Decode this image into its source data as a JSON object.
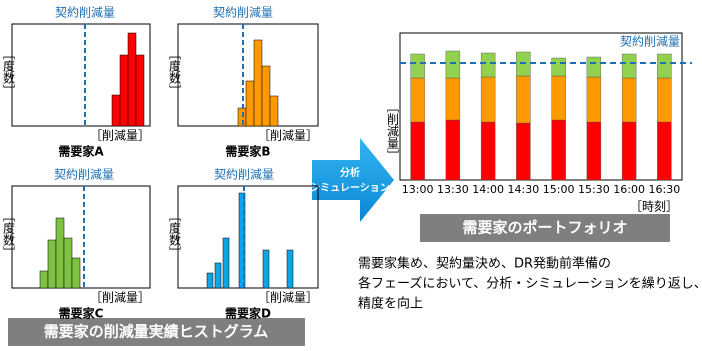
{
  "contract_label": "契約削減量",
  "y_label": "［度数］",
  "x_label": "［削減量］",
  "histograms": [
    {
      "customer": "需要家A",
      "color": "#ff0000",
      "values": [
        0,
        0,
        0,
        0,
        0,
        0,
        0,
        0,
        0,
        0,
        0,
        0,
        31,
        71,
        93,
        71,
        0
      ]
    },
    {
      "customer": "需要家B",
      "color": "#ff9900",
      "values": [
        0,
        0,
        0,
        0,
        0,
        0,
        0,
        18,
        45,
        86,
        60,
        30,
        0,
        0,
        0,
        0,
        0
      ]
    },
    {
      "customer": "需要家C",
      "color": "#7dc242",
      "values": [
        0,
        0,
        0,
        17,
        48,
        70,
        50,
        30,
        0,
        0,
        0,
        0,
        0,
        0,
        0,
        0,
        0
      ]
    },
    {
      "customer": "需要家D",
      "color": "#0ea5e6",
      "values": [
        0,
        0,
        0,
        15,
        25,
        50,
        0,
        95,
        0,
        0,
        38,
        0,
        0,
        38,
        0,
        0,
        0
      ]
    }
  ],
  "histogram_caption": "需要家の削減量実績ヒストグラム",
  "arrow_label": [
    "分析",
    "シミュレーション"
  ],
  "portfolio": {
    "title": "需要家のポートフォリオ",
    "contract_label": "契約削減量",
    "y_label": "［削減量］",
    "x_label": "［時刻］",
    "categories": [
      "13:00",
      "13:30",
      "14:00",
      "14:30",
      "15:00",
      "15:30",
      "16:00",
      "16:30"
    ],
    "series": [
      {
        "color": "#ff0000",
        "values": [
          58,
          60,
          58,
          57,
          60,
          58,
          58,
          58
        ]
      },
      {
        "color": "#ff9900",
        "values": [
          44,
          42,
          45,
          47,
          44,
          45,
          44,
          44
        ]
      },
      {
        "color": "#92d050",
        "values": [
          24,
          27,
          24,
          24,
          18,
          20,
          24,
          24
        ]
      }
    ],
    "contract_value": 117
  },
  "note": [
    "需要家集め、契約量決め、DR発動前準備の",
    "各フェーズにおいて、分析・シミュレーションを繰り返し、",
    "精度を向上"
  ]
}
